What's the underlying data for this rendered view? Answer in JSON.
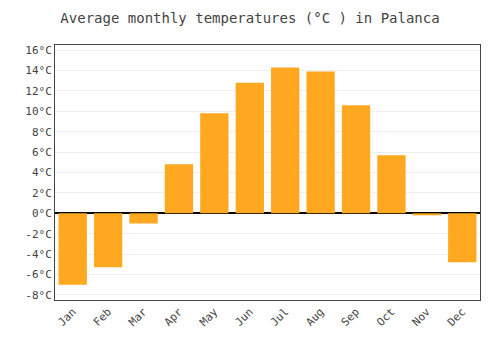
{
  "chart_data": {
    "type": "bar",
    "title": "Average monthly temperatures (°C ) in Palanca",
    "categories": [
      "Jan",
      "Feb",
      "Mar",
      "Apr",
      "May",
      "Jun",
      "Jul",
      "Aug",
      "Sep",
      "Oct",
      "Nov",
      "Dec"
    ],
    "values": [
      -7.0,
      -5.3,
      -1.0,
      4.8,
      9.8,
      12.8,
      14.3,
      13.9,
      10.6,
      5.7,
      -0.2,
      -4.8
    ],
    "color": "#FFA820",
    "ylim": [
      -8.5,
      16.5
    ],
    "yticks": [
      {
        "value": -8,
        "label": "-8°C"
      },
      {
        "value": -6,
        "label": "-6°C"
      },
      {
        "value": -4,
        "label": "-4°C"
      },
      {
        "value": -2,
        "label": "-2°C"
      },
      {
        "value": 0,
        "label": "0°C"
      },
      {
        "value": 2,
        "label": "2°C"
      },
      {
        "value": 4,
        "label": "4°C"
      },
      {
        "value": 6,
        "label": "6°C"
      },
      {
        "value": 8,
        "label": "8°C"
      },
      {
        "value": 10,
        "label": "10°C"
      },
      {
        "value": 12,
        "label": "12°C"
      },
      {
        "value": 14,
        "label": "14°C"
      },
      {
        "value": 16,
        "label": "16°C"
      }
    ],
    "grid": true
  }
}
